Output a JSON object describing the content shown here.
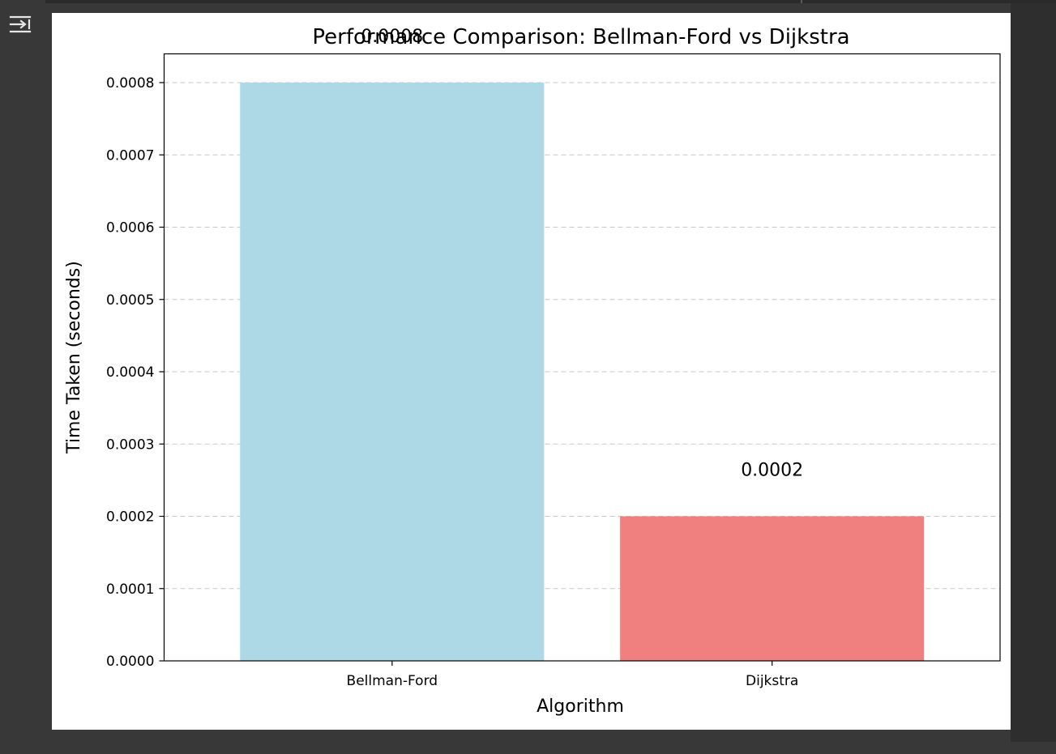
{
  "output_toggle": {
    "icon": "output-collapse-icon"
  },
  "chart_data": {
    "type": "bar",
    "title": "Performance Comparison: Bellman-Ford vs Dijkstra",
    "xlabel": "Algorithm",
    "ylabel": "Time Taken (seconds)",
    "categories": [
      "Bellman-Ford",
      "Dijkstra"
    ],
    "values": [
      0.0008,
      0.0002
    ],
    "value_labels": [
      "0.0008",
      "0.0002"
    ],
    "colors": [
      "#add8e6",
      "#f08080"
    ],
    "ylim": [
      0,
      0.0008
    ],
    "yticks": [
      0.0,
      0.0001,
      0.0002,
      0.0003,
      0.0004,
      0.0005,
      0.0006,
      0.0007,
      0.0008
    ],
    "ytick_labels": [
      "0.0000",
      "0.0001",
      "0.0002",
      "0.0003",
      "0.0004",
      "0.0005",
      "0.0006",
      "0.0007",
      "0.0008"
    ],
    "grid": "y-dashed",
    "legend": "none"
  }
}
